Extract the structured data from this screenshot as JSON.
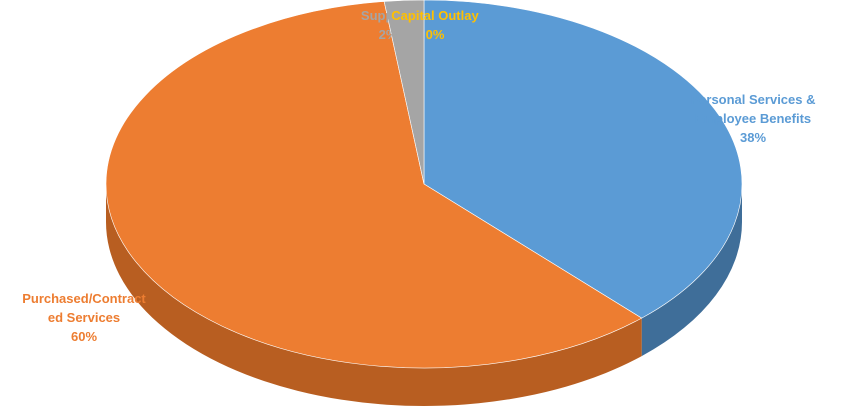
{
  "chart_data": {
    "type": "pie",
    "title": "",
    "style": "3d",
    "slices": [
      {
        "label_lines": [
          "Personal Services &",
          "Employee Benefits"
        ],
        "value": 38,
        "value_label": "38%",
        "color": "#5B9BD5",
        "side_color": "#3F6E99"
      },
      {
        "label_lines": [
          "Purchased/Contract",
          "ed Services"
        ],
        "value": 60,
        "value_label": "60%",
        "color": "#ED7D31",
        "side_color": "#B85E21"
      },
      {
        "label_lines": [
          "Supplies"
        ],
        "value": 2,
        "value_label": "2%",
        "color": "#A5A5A5",
        "side_color": "#7C7C7C"
      },
      {
        "label_lines": [
          "Capital Outlay"
        ],
        "value": 0,
        "value_label": "0%",
        "color": "#FFC000",
        "side_color": "#C79500"
      }
    ]
  }
}
